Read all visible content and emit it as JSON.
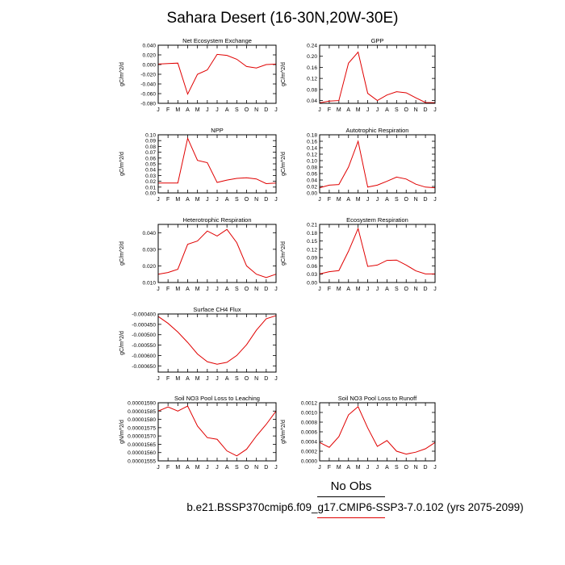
{
  "title": "Sahara Desert (16-30N,20W-30E)",
  "legend": {
    "obs_label": "No Obs",
    "case_label": "b.e21.BSSP370cmip6.f09_g17.CMIP6-SSP3-7.0.102 (yrs 2075-2099)",
    "obs_color": "#000000",
    "case_color": "#e00000"
  },
  "chart_data": [
    {
      "type": "line",
      "title": "Net Ecosystem Exchange",
      "ylabel": "gC/m^2/d",
      "x": [
        "J",
        "F",
        "M",
        "A",
        "M",
        "J",
        "J",
        "A",
        "S",
        "O",
        "N",
        "D",
        "J"
      ],
      "ylim": [
        -0.08,
        0.04
      ],
      "yticks": [
        "0.040",
        "0.020",
        "0.000",
        "-0.020",
        "-0.040",
        "-0.060",
        "-0.080"
      ],
      "ytick_values": [
        0.04,
        0.02,
        0.0,
        -0.02,
        -0.04,
        -0.06,
        -0.08
      ],
      "series": [
        {
          "values": [
            0.001,
            0.002,
            0.003,
            -0.061,
            -0.02,
            -0.011,
            0.021,
            0.019,
            0.011,
            -0.004,
            -0.007,
            0.0,
            0.001
          ]
        }
      ]
    },
    {
      "type": "line",
      "title": "GPP",
      "ylabel": "gC/m^2/d",
      "x": [
        "J",
        "F",
        "M",
        "A",
        "M",
        "J",
        "J",
        "A",
        "S",
        "O",
        "N",
        "D",
        "J"
      ],
      "ylim": [
        0.03,
        0.24
      ],
      "yticks": [
        "0.24",
        "0.20",
        "0.16",
        "0.12",
        "0.08",
        "0.04"
      ],
      "ytick_values": [
        0.24,
        0.2,
        0.16,
        0.12,
        0.08,
        0.04
      ],
      "series": [
        {
          "values": [
            0.032,
            0.038,
            0.04,
            0.175,
            0.215,
            0.066,
            0.04,
            0.06,
            0.072,
            0.068,
            0.05,
            0.033,
            0.032
          ]
        }
      ]
    },
    {
      "type": "line",
      "title": "NPP",
      "ylabel": "gC/m^2/d",
      "x": [
        "J",
        "F",
        "M",
        "A",
        "M",
        "J",
        "J",
        "A",
        "S",
        "O",
        "N",
        "D",
        "J"
      ],
      "ylim": [
        0.0,
        0.1
      ],
      "yticks": [
        "0.10",
        "0.09",
        "0.08",
        "0.07",
        "0.06",
        "0.05",
        "0.04",
        "0.03",
        "0.02",
        "0.01",
        "0.00"
      ],
      "ytick_values": [
        0.1,
        0.09,
        0.08,
        0.07,
        0.06,
        0.05,
        0.04,
        0.03,
        0.02,
        0.01,
        0.0
      ],
      "series": [
        {
          "values": [
            0.017,
            0.017,
            0.017,
            0.094,
            0.056,
            0.052,
            0.018,
            0.022,
            0.025,
            0.026,
            0.024,
            0.016,
            0.017
          ]
        }
      ]
    },
    {
      "type": "line",
      "title": "Autotrophic Respiration",
      "ylabel": "gC/m^2/d",
      "x": [
        "J",
        "F",
        "M",
        "A",
        "M",
        "J",
        "J",
        "A",
        "S",
        "O",
        "N",
        "D",
        "J"
      ],
      "ylim": [
        0.0,
        0.18
      ],
      "yticks": [
        "0.18",
        "0.16",
        "0.14",
        "0.12",
        "0.10",
        "0.08",
        "0.06",
        "0.04",
        "0.02",
        "0.00"
      ],
      "ytick_values": [
        0.18,
        0.16,
        0.14,
        0.12,
        0.1,
        0.08,
        0.06,
        0.04,
        0.02,
        0.0
      ],
      "series": [
        {
          "values": [
            0.016,
            0.024,
            0.026,
            0.08,
            0.16,
            0.018,
            0.024,
            0.036,
            0.049,
            0.043,
            0.027,
            0.018,
            0.016
          ]
        }
      ]
    },
    {
      "type": "line",
      "title": "Heterotrophic Respiration",
      "ylabel": "gC/m^2/d",
      "x": [
        "J",
        "F",
        "M",
        "A",
        "M",
        "J",
        "J",
        "A",
        "S",
        "O",
        "N",
        "D",
        "J"
      ],
      "ylim": [
        0.01,
        0.045
      ],
      "yticks": [
        "0.040",
        "0.030",
        "0.020",
        "0.010"
      ],
      "ytick_values": [
        0.04,
        0.03,
        0.02,
        0.01
      ],
      "series": [
        {
          "values": [
            0.015,
            0.016,
            0.018,
            0.033,
            0.035,
            0.041,
            0.038,
            0.042,
            0.034,
            0.02,
            0.015,
            0.013,
            0.015
          ]
        }
      ]
    },
    {
      "type": "line",
      "title": "Ecosystem Respiration",
      "ylabel": "gC/m^2/d",
      "x": [
        "J",
        "F",
        "M",
        "A",
        "M",
        "J",
        "J",
        "A",
        "S",
        "O",
        "N",
        "D",
        "J"
      ],
      "ylim": [
        0.0,
        0.21
      ],
      "yticks": [
        "0.21",
        "0.18",
        "0.15",
        "0.12",
        "0.09",
        "0.06",
        "0.03",
        "0.00"
      ],
      "ytick_values": [
        0.21,
        0.18,
        0.15,
        0.12,
        0.09,
        0.06,
        0.03,
        0.0
      ],
      "series": [
        {
          "values": [
            0.031,
            0.039,
            0.043,
            0.113,
            0.195,
            0.058,
            0.063,
            0.08,
            0.081,
            0.063,
            0.042,
            0.031,
            0.031
          ]
        }
      ]
    },
    {
      "type": "line",
      "title": "Surface CH4 Flux",
      "ylabel": "gC/m^2/d",
      "x": [
        "J",
        "F",
        "M",
        "A",
        "M",
        "J",
        "J",
        "A",
        "S",
        "O",
        "N",
        "D",
        "J"
      ],
      "ylim": [
        -0.00068,
        -0.0004
      ],
      "yticks": [
        "-0.000400",
        "-0.000450",
        "-0.000500",
        "-0.000550",
        "-0.000600",
        "-0.000650"
      ],
      "ytick_values": [
        -0.0004,
        -0.00045,
        -0.0005,
        -0.00055,
        -0.0006,
        -0.00065
      ],
      "series": [
        {
          "values": [
            -0.000412,
            -0.000445,
            -0.000487,
            -0.000537,
            -0.000593,
            -0.00063,
            -0.000642,
            -0.000633,
            -0.0006,
            -0.000548,
            -0.000478,
            -0.000423,
            -0.000408
          ]
        }
      ]
    },
    {
      "type": "line",
      "title": "Soil NO3 Pool Loss to Leaching",
      "ylabel": "gN/m^2/d",
      "x": [
        "J",
        "F",
        "M",
        "A",
        "M",
        "J",
        "J",
        "A",
        "S",
        "O",
        "N",
        "D",
        "J"
      ],
      "ylim": [
        1.555e-05,
        1.59e-05
      ],
      "yticks": [
        "0.00001590",
        "0.00001585",
        "0.00001580",
        "0.00001575",
        "0.00001570",
        "0.00001565",
        "0.00001560",
        "0.00001555"
      ],
      "ytick_values": [
        1.59e-05,
        1.585e-05,
        1.58e-05,
        1.575e-05,
        1.57e-05,
        1.565e-05,
        1.56e-05,
        1.555e-05
      ],
      "series": [
        {
          "values": [
            1.585e-05,
            1.5875e-05,
            1.585e-05,
            1.588e-05,
            1.576e-05,
            1.569e-05,
            1.568e-05,
            1.561e-05,
            1.558e-05,
            1.562e-05,
            1.57e-05,
            1.577e-05,
            1.585e-05
          ]
        }
      ]
    },
    {
      "type": "line",
      "title": "Soil NO3 Pool Loss to Runoff",
      "ylabel": "gN/m^2/d",
      "x": [
        "J",
        "F",
        "M",
        "A",
        "M",
        "J",
        "J",
        "A",
        "S",
        "O",
        "N",
        "D",
        "J"
      ],
      "ylim": [
        0.0,
        0.0012
      ],
      "yticks": [
        "0.0012",
        "0.0010",
        "0.0008",
        "0.0006",
        "0.0004",
        "0.0002",
        "0.0000"
      ],
      "ytick_values": [
        0.0012,
        0.001,
        0.0008,
        0.0006,
        0.0004,
        0.0002,
        0.0
      ],
      "series": [
        {
          "values": [
            0.00038,
            0.00028,
            0.0005,
            0.00095,
            0.00112,
            0.00068,
            0.0003,
            0.00042,
            0.0002,
            0.00014,
            0.00018,
            0.00025,
            0.00038
          ]
        }
      ]
    }
  ]
}
